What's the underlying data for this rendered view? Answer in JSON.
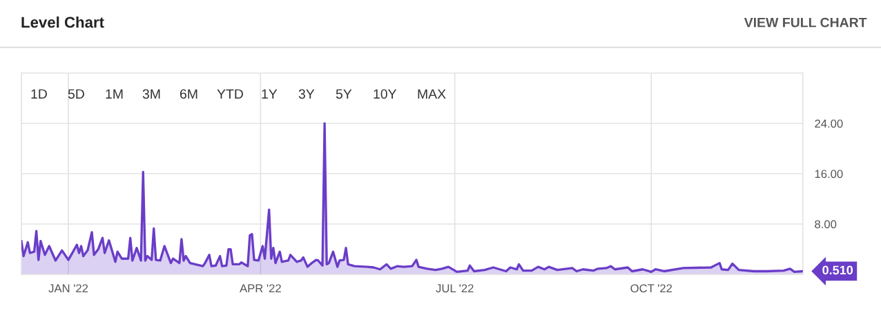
{
  "chart_data": {
    "type": "area",
    "title": "Level Chart",
    "annotations": [
      "VIEW FULL CHART",
      "1D",
      "5D",
      "1M",
      "3M",
      "6M",
      "YTD",
      "1Y",
      "3Y",
      "5Y",
      "10Y",
      "MAX",
      {
        "text": "0.510",
        "x": "2022-12-11",
        "y": 0.51
      }
    ],
    "x": [
      "2021-12-10",
      "2021-12-11",
      "2021-12-13",
      "2021-12-14",
      "2021-12-16",
      "2021-12-17",
      "2021-12-18",
      "2021-12-19",
      "2021-12-21",
      "2021-12-23",
      "2021-12-26",
      "2021-12-29",
      "2022-01-01",
      "2022-01-05",
      "2022-01-06",
      "2022-01-07",
      "2022-01-08",
      "2022-01-10",
      "2022-01-12",
      "2022-01-13",
      "2022-01-15",
      "2022-01-17",
      "2022-01-18",
      "2022-01-20",
      "2022-01-23",
      "2022-01-24",
      "2022-01-26",
      "2022-01-29",
      "2022-01-30",
      "2022-01-31",
      "2022-02-02",
      "2022-02-04",
      "2022-02-05",
      "2022-02-06",
      "2022-02-07",
      "2022-02-09",
      "2022-02-10",
      "2022-02-11",
      "2022-02-13",
      "2022-02-15",
      "2022-02-18",
      "2022-02-19",
      "2022-02-22",
      "2022-02-23",
      "2022-02-24",
      "2022-02-25",
      "2022-02-27",
      "2022-03-05",
      "2022-03-06",
      "2022-03-08",
      "2022-03-09",
      "2022-03-11",
      "2022-03-13",
      "2022-03-14",
      "2022-03-16",
      "2022-03-17",
      "2022-03-18",
      "2022-03-19",
      "2022-03-22",
      "2022-03-23",
      "2022-03-26",
      "2022-03-27",
      "2022-03-28",
      "2022-03-29",
      "2022-03-31",
      "2022-04-02",
      "2022-04-03",
      "2022-04-05",
      "2022-04-06",
      "2022-04-07",
      "2022-04-08",
      "2022-04-10",
      "2022-04-11",
      "2022-04-14",
      "2022-04-15",
      "2022-04-18",
      "2022-04-20",
      "2022-04-21",
      "2022-04-23",
      "2022-04-25",
      "2022-04-27",
      "2022-04-28",
      "2022-04-30",
      "2022-05-01",
      "2022-05-02",
      "2022-05-03",
      "2022-05-05",
      "2022-05-07",
      "2022-05-08",
      "2022-05-10",
      "2022-05-11",
      "2022-05-12",
      "2022-05-15",
      "2022-05-21",
      "2022-05-24",
      "2022-05-27",
      "2022-05-30",
      "2022-06-01",
      "2022-06-04",
      "2022-06-07",
      "2022-06-11",
      "2022-06-13",
      "2022-06-14",
      "2022-06-18",
      "2022-06-22",
      "2022-06-25",
      "2022-06-28",
      "2022-07-02",
      "2022-07-07",
      "2022-07-08",
      "2022-07-10",
      "2022-07-15",
      "2022-07-19",
      "2022-07-25",
      "2022-07-27",
      "2022-07-30",
      "2022-07-31",
      "2022-08-02",
      "2022-08-06",
      "2022-08-09",
      "2022-08-12",
      "2022-08-14",
      "2022-08-18",
      "2022-08-25",
      "2022-08-27",
      "2022-08-30",
      "2022-09-04",
      "2022-09-06",
      "2022-09-10",
      "2022-09-12",
      "2022-09-14",
      "2022-09-20",
      "2022-09-22",
      "2022-09-27",
      "2022-10-01",
      "2022-10-03",
      "2022-10-07",
      "2022-10-16",
      "2022-10-29",
      "2022-11-02",
      "2022-11-03",
      "2022-11-06",
      "2022-11-08",
      "2022-11-11",
      "2022-11-18",
      "2022-11-24",
      "2022-12-02",
      "2022-12-05",
      "2022-12-07",
      "2022-12-11"
    ],
    "series": [
      {
        "color": "#6a3dc8",
        "values": [
          5.3,
          2.9,
          5.1,
          3.4,
          3.6,
          6.9,
          2.3,
          5.3,
          3.1,
          4.5,
          2.2,
          3.8,
          2.3,
          4.7,
          3.4,
          4.5,
          2.9,
          3.8,
          6.7,
          3.1,
          4.0,
          5.8,
          3.4,
          5.4,
          2.0,
          3.6,
          2.5,
          2.5,
          5.8,
          2.2,
          4.2,
          2.2,
          16.3,
          2.2,
          2.9,
          2.3,
          7.3,
          2.3,
          2.2,
          4.5,
          1.8,
          2.5,
          1.8,
          5.6,
          2.2,
          2.9,
          1.8,
          1.3,
          1.8,
          3.1,
          1.3,
          1.4,
          2.9,
          1.3,
          1.4,
          4.0,
          4.0,
          1.6,
          1.6,
          1.9,
          1.3,
          6.2,
          6.4,
          2.3,
          2.2,
          4.5,
          2.5,
          10.3,
          2.5,
          4.2,
          1.8,
          3.6,
          2.0,
          2.2,
          3.1,
          2.0,
          2.2,
          2.7,
          1.2,
          1.8,
          2.3,
          2.2,
          1.4,
          24.0,
          1.6,
          1.8,
          3.6,
          1.2,
          2.2,
          2.3,
          4.2,
          1.6,
          1.3,
          1.2,
          1.1,
          0.8,
          1.6,
          0.9,
          1.3,
          1.2,
          1.3,
          2.3,
          1.2,
          0.9,
          0.7,
          0.9,
          1.2,
          0.4,
          0.6,
          1.4,
          0.5,
          0.7,
          1.1,
          0.5,
          1.1,
          0.8,
          1.6,
          0.6,
          0.6,
          1.2,
          0.8,
          1.2,
          0.7,
          1.0,
          0.5,
          0.8,
          0.6,
          0.9,
          1.0,
          1.3,
          0.8,
          1.1,
          0.5,
          0.8,
          0.4,
          0.8,
          0.5,
          1.0,
          1.1,
          1.8,
          0.8,
          0.7,
          1.7,
          0.7,
          0.5,
          0.5,
          0.6,
          0.9,
          0.4,
          0.5
        ]
      }
    ],
    "xlim": [
      "2021-12-10",
      "2022-12-11"
    ],
    "xticks": [
      {
        "value": "2022-01-01",
        "label": "JAN '22"
      },
      {
        "value": "2022-04-01",
        "label": "APR '22"
      },
      {
        "value": "2022-07-01",
        "label": "JUL '22"
      },
      {
        "value": "2022-10-01",
        "label": "OCT '22"
      }
    ],
    "ylim": [
      0,
      32
    ],
    "yticks": [
      {
        "value": 8,
        "label": "8.00"
      },
      {
        "value": 16,
        "label": "16.00"
      },
      {
        "value": 24,
        "label": "24.00"
      }
    ],
    "grid": true
  }
}
